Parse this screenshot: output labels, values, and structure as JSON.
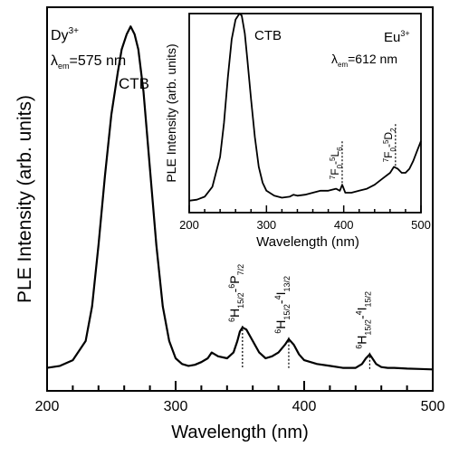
{
  "chart_data": [
    {
      "type": "line",
      "panel": "main",
      "xlabel": "Wavelength (nm)",
      "ylabel": "PLE Intensity (arb. units)",
      "xlim": [
        200,
        500
      ],
      "ylim": [
        0,
        1.0
      ],
      "x_ticks": [
        "200",
        "300",
        "400",
        "500"
      ],
      "y_ticks_labeled": false,
      "grid": false,
      "ion": "Dy",
      "ion_charge": "3+",
      "em_symbol": "λ",
      "em_sub": "em",
      "em_value": "=575 nm",
      "peak_label": "CTB",
      "series": [
        {
          "x": [
            200,
            210,
            220,
            230,
            235,
            240,
            245,
            250,
            255,
            258,
            262,
            265,
            268,
            271,
            275,
            280,
            285,
            290,
            295,
            300,
            305,
            310,
            315,
            320,
            325,
            328,
            333,
            340,
            345,
            348,
            350,
            352,
            355,
            360,
            365,
            370,
            375,
            380,
            385,
            388,
            392,
            396,
            400,
            405,
            410,
            420,
            430,
            440,
            445,
            448,
            451,
            453,
            456,
            460,
            465,
            470,
            480,
            490,
            500
          ],
          "y": [
            0.06,
            0.065,
            0.08,
            0.13,
            0.22,
            0.38,
            0.56,
            0.72,
            0.83,
            0.89,
            0.93,
            0.95,
            0.93,
            0.89,
            0.78,
            0.58,
            0.38,
            0.22,
            0.13,
            0.085,
            0.07,
            0.065,
            0.068,
            0.075,
            0.085,
            0.1,
            0.09,
            0.085,
            0.1,
            0.13,
            0.155,
            0.165,
            0.16,
            0.13,
            0.1,
            0.085,
            0.09,
            0.1,
            0.12,
            0.135,
            0.12,
            0.095,
            0.08,
            0.075,
            0.07,
            0.065,
            0.06,
            0.06,
            0.07,
            0.085,
            0.095,
            0.085,
            0.07,
            0.062,
            0.06,
            0.06,
            0.058,
            0.057,
            0.056
          ]
        }
      ],
      "transitions": [
        {
          "x": 352,
          "mult": "6",
          "a": "H",
          "a_sub": "15/2",
          "sep": "-",
          "mult2": "6",
          "b": "P",
          "b_sub": "7/2"
        },
        {
          "x": 388,
          "mult": "6",
          "a": "H",
          "a_sub": "15/2",
          "sep": "-",
          "mult2": "4",
          "b": "I",
          "b_sub": "13/2"
        },
        {
          "x": 451,
          "mult": "6",
          "a": "H",
          "a_sub": "15/2",
          "sep": "-",
          "mult2": "4",
          "b": "I",
          "b_sub": "15/2"
        }
      ]
    },
    {
      "type": "line",
      "panel": "inset",
      "xlabel": "Wavelength (nm)",
      "ylabel": "PLE Intensity (arb. units)",
      "xlim": [
        200,
        500
      ],
      "ylim": [
        0,
        1.0
      ],
      "x_ticks": [
        "200",
        "300",
        "400",
        "500"
      ],
      "grid": false,
      "ion": "Eu",
      "ion_charge": "3+",
      "em_symbol": "λ",
      "em_sub": "em",
      "em_value": "=612 nm",
      "peak_label": "CTB",
      "series": [
        {
          "x": [
            200,
            210,
            220,
            230,
            240,
            245,
            250,
            255,
            260,
            265,
            268,
            272,
            275,
            280,
            285,
            290,
            295,
            300,
            310,
            320,
            330,
            335,
            340,
            350,
            360,
            370,
            380,
            390,
            395,
            398,
            402,
            410,
            420,
            430,
            440,
            450,
            460,
            465,
            470,
            475,
            480,
            485,
            490,
            495,
            500
          ],
          "y": [
            0.06,
            0.065,
            0.08,
            0.13,
            0.28,
            0.45,
            0.68,
            0.87,
            0.97,
            1.0,
            0.99,
            0.9,
            0.78,
            0.57,
            0.38,
            0.23,
            0.15,
            0.11,
            0.085,
            0.075,
            0.08,
            0.09,
            0.085,
            0.09,
            0.1,
            0.11,
            0.11,
            0.12,
            0.11,
            0.14,
            0.1,
            0.1,
            0.11,
            0.12,
            0.14,
            0.17,
            0.2,
            0.23,
            0.22,
            0.2,
            0.2,
            0.22,
            0.26,
            0.31,
            0.36
          ]
        }
      ],
      "transitions": [
        {
          "x": 398,
          "mult": "7",
          "a": "F",
          "a_sub": "0",
          "sep": "-",
          "mult2": "5",
          "b": "L",
          "b_sub": "6"
        },
        {
          "x": 467,
          "mult": "7",
          "a": "F",
          "a_sub": "0",
          "sep": "-",
          "mult2": "5",
          "b": "D",
          "b_sub": "2"
        }
      ]
    }
  ]
}
